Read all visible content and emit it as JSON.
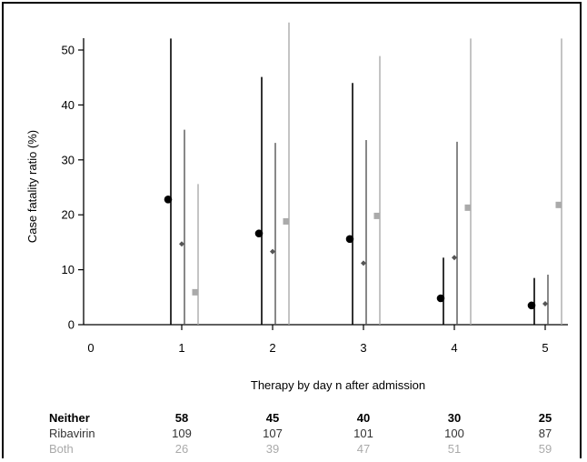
{
  "chart_data": {
    "type": "scatter",
    "title": "",
    "xlabel": "Therapy by day n after admission",
    "ylabel": "Case fatality ratio (%)",
    "xlim": [
      0,
      5.5
    ],
    "ylim": [
      0,
      55
    ],
    "x_ticks": [
      0,
      1,
      2,
      3,
      4,
      5
    ],
    "y_ticks": [
      0,
      10,
      20,
      30,
      40,
      50
    ],
    "categories": [
      1,
      2,
      3,
      4,
      5
    ],
    "series": [
      {
        "name": "Neither",
        "color": "#000000",
        "marker": "circle",
        "x": [
          1,
          2,
          3,
          4,
          5
        ],
        "values": [
          22.8,
          16.6,
          15.6,
          4.8,
          3.5
        ],
        "upper": [
          52.1,
          45.1,
          44.0,
          12.2,
          8.5
        ],
        "lower": [
          0,
          0,
          0,
          0,
          0
        ]
      },
      {
        "name": "Ribavirin",
        "color": "#555555",
        "marker": "diamond",
        "x": [
          1,
          2,
          3,
          4,
          5
        ],
        "values": [
          14.7,
          13.3,
          11.2,
          12.2,
          3.8
        ],
        "upper": [
          35.5,
          33.1,
          33.6,
          33.3,
          9.1
        ],
        "lower": [
          0,
          0,
          0,
          0,
          0
        ]
      },
      {
        "name": "Both",
        "color": "#aaaaaa",
        "marker": "square",
        "x": [
          1,
          2,
          3,
          4,
          5
        ],
        "values": [
          5.9,
          18.8,
          19.8,
          21.3,
          21.8
        ],
        "upper": [
          25.6,
          55.0,
          48.9,
          52.1,
          52.1
        ],
        "lower": [
          0,
          0,
          0,
          0,
          0
        ]
      }
    ],
    "counts_table": [
      {
        "label": "Neither",
        "color": "#000000",
        "bold": true,
        "values": [
          "58",
          "45",
          "40",
          "30",
          "25"
        ]
      },
      {
        "label": "Ribavirin",
        "color": "#333333",
        "bold": false,
        "values": [
          "109",
          "107",
          "101",
          "100",
          "87"
        ]
      },
      {
        "label": "Both",
        "color": "#aaaaaa",
        "bold": false,
        "values": [
          "26",
          "39",
          "47",
          "51",
          "59"
        ]
      }
    ]
  }
}
